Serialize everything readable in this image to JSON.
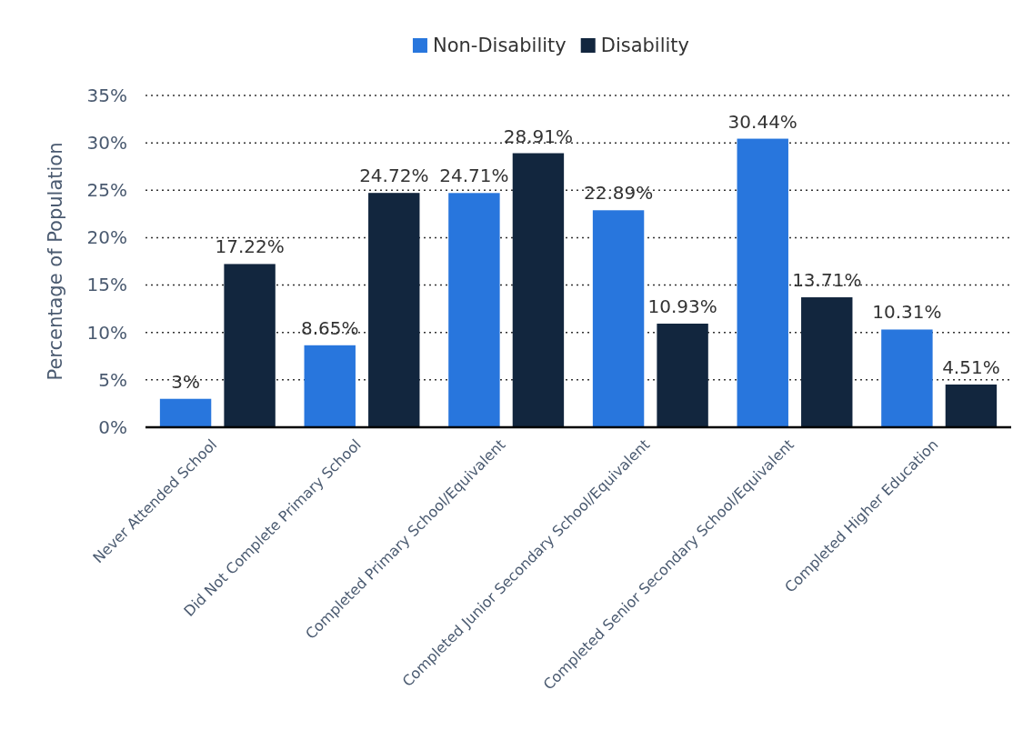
{
  "chart_data": {
    "type": "bar",
    "ylabel": "Percentage of Population",
    "categories": [
      "Never Attended School",
      "Did Not Complete Primary School",
      "Completed Primary School/Equivalent",
      "Completed Junior Secondary School/Equivalent",
      "Completed Senior Secondary School/Equivalent",
      "Completed Higher Education"
    ],
    "series": [
      {
        "name": "Non-Disability",
        "color": "#2876dd",
        "values": [
          3,
          8.65,
          24.71,
          22.89,
          30.44,
          10.31
        ],
        "value_labels": [
          "3%",
          "8.65%",
          "24.71%",
          "22.89%",
          "30.44%",
          "10.31%"
        ]
      },
      {
        "name": "Disability",
        "color": "#12263e",
        "values": [
          17.22,
          24.72,
          28.91,
          10.93,
          13.71,
          4.51
        ],
        "value_labels": [
          "17.22%",
          "24.72%",
          "28.91%",
          "10.93%",
          "13.71%",
          "4.51%"
        ]
      }
    ],
    "ylim": [
      0,
      35
    ],
    "yticks": [
      {
        "value": 0,
        "label": "0%"
      },
      {
        "value": 5,
        "label": "5%"
      },
      {
        "value": 10,
        "label": "10%"
      },
      {
        "value": 15,
        "label": "15%"
      },
      {
        "value": 20,
        "label": "20%"
      },
      {
        "value": 25,
        "label": "25%"
      },
      {
        "value": 30,
        "label": "30%"
      },
      {
        "value": 35,
        "label": "35%"
      }
    ],
    "grid": "y",
    "legend": "top"
  }
}
